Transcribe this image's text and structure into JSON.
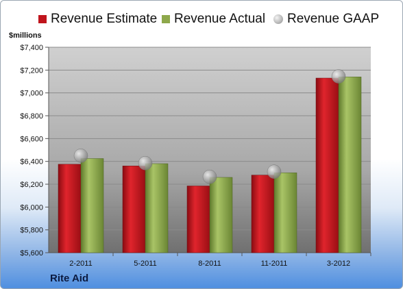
{
  "chart_data": {
    "type": "bar",
    "ylabel": "$millions",
    "ylim": [
      5600,
      7400
    ],
    "yticks": [
      5600,
      5800,
      6000,
      6200,
      6400,
      6600,
      6800,
      7000,
      7200,
      7400
    ],
    "ytick_labels": [
      "$5,600",
      "$5,800",
      "$6,000",
      "$6,200",
      "$6,400",
      "$6,600",
      "$6,800",
      "$7,000",
      "$7,200",
      "$7,400"
    ],
    "categories": [
      "2-2011",
      "5-2011",
      "8-2011",
      "11-2011",
      "3-2012"
    ],
    "series": [
      {
        "name": "Revenue Estimate",
        "kind": "bar",
        "color": "#c0141c",
        "values": [
          6375,
          6360,
          6185,
          6280,
          7130
        ]
      },
      {
        "name": "Revenue Actual",
        "kind": "bar",
        "color": "#8ea84b",
        "values": [
          6425,
          6380,
          6260,
          6300,
          7140
        ]
      },
      {
        "name": "Revenue GAAP",
        "kind": "bubble",
        "color": "#a0a0a0",
        "values": [
          6450,
          6385,
          6265,
          6310,
          7145
        ]
      }
    ],
    "legend_position": "top",
    "grid": true
  },
  "company": "Rite Aid"
}
